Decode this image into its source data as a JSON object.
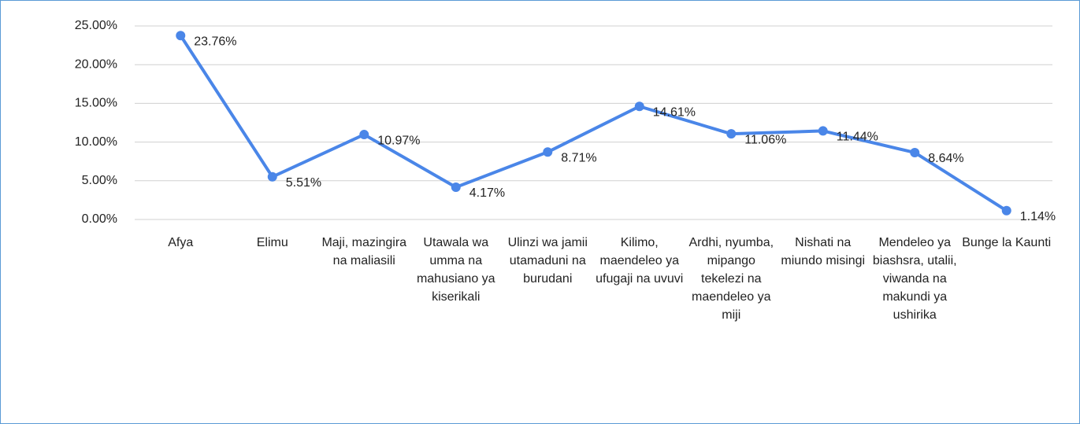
{
  "chart_data": {
    "type": "line",
    "categories": [
      "Afya",
      "Elimu",
      "Maji, mazingira na maliasili",
      "Utawala wa umma na mahusiano ya kiserikali",
      "Ulinzi wa jamii utamaduni na burudani",
      "Kilimo, maendeleo ya ufugaji na uvuvi",
      "Ardhi, nyumba, mipango tekelezi na maendeleo ya miji",
      "Nishati na miundo misingi",
      "Mendeleo ya biashsra, utalii, viwanda na makundi ya ushirika",
      "Bunge la Kaunti"
    ],
    "values": [
      23.76,
      5.51,
      10.97,
      4.17,
      8.71,
      14.61,
      11.06,
      11.44,
      8.64,
      1.14
    ],
    "value_labels": [
      "23.76%",
      "5.51%",
      "10.97%",
      "4.17%",
      "8.71%",
      "14.61%",
      "11.06%",
      "11.44%",
      "8.64%",
      "1.14%"
    ],
    "color": "#4a86e8",
    "ylim": [
      0,
      25
    ],
    "yticks": [
      {
        "value": 0,
        "label": "0.00%"
      },
      {
        "value": 5,
        "label": "5.00%"
      },
      {
        "value": 10,
        "label": "10.00%"
      },
      {
        "value": 15,
        "label": "15.00%"
      },
      {
        "value": 20,
        "label": "20.00%"
      },
      {
        "value": 25,
        "label": "25.00%"
      }
    ],
    "grid": true
  }
}
